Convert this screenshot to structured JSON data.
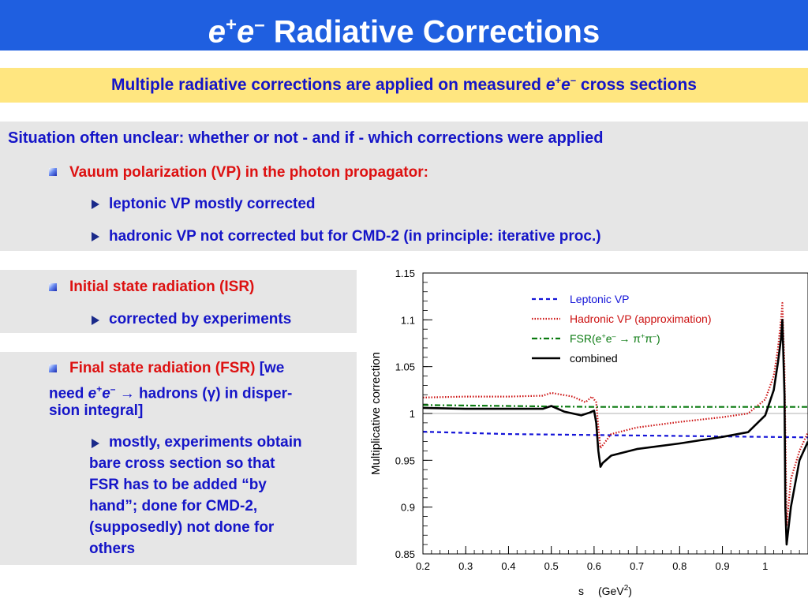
{
  "header": {
    "title_e1": "e",
    "title_sup1": "+",
    "title_e2": "e",
    "title_sup2": "–",
    "title_rest": " Radiative Corrections"
  },
  "banner": {
    "text_pre": "Multiple radiative corrections are applied on measured ",
    "e1": "e",
    "sup1": "+",
    "e2": "e",
    "sup2": "–",
    "text_post": " cross sections"
  },
  "section1": {
    "heading": "Situation often unclear: whether or not - and if - which corrections were applied",
    "bullet": "Vauum polarization (VP) in the photon propagator:",
    "sub1": "leptonic VP mostly corrected",
    "sub2": "hadronic VP not corrected but for CMD-2 (in principle: iterative proc.)"
  },
  "section2": {
    "bullet": "Initial state radiation (ISR)",
    "sub1": "corrected by experiments"
  },
  "section3": {
    "bullet_red": "Final state radiation (FSR)",
    "bullet_blue1": " [we",
    "line2_pre": "need ",
    "e1": "e",
    "sup1": "+",
    "e2": "e",
    "sup2": "–",
    "arrow": "→",
    "line2_post1": " hadrons (",
    "gamma": "γ",
    "line2_post2": ") in disper-",
    "line3": "sion integral]",
    "sub1_lines": [
      "mostly, experiments obtain",
      "bare cross section so that",
      "FSR has to be added “by",
      "hand”; done for CMD-2,",
      "(supposedly) not done for",
      "others"
    ]
  },
  "chart_data": {
    "type": "line",
    "xlabel_s": "s",
    "xlabel_unit": "(GeV",
    "xlabel_sup": "2",
    "xlabel_close": ")",
    "ylabel": "Multiplicative correction",
    "xlim": [
      0.2,
      1.1
    ],
    "ylim": [
      0.85,
      1.15
    ],
    "xticks": [
      "0.2",
      "0.3",
      "0.4",
      "0.5",
      "0.6",
      "0.7",
      "0.8",
      "0.9",
      "1"
    ],
    "yticks": [
      "0.85",
      "0.9",
      "0.95",
      "1",
      "1.05",
      "1.1",
      "1.15"
    ],
    "legend_position": "top-right",
    "series": [
      {
        "name": "Leptonic VP",
        "color": "#1515d8",
        "style": "dashed",
        "x": [
          0.2,
          0.4,
          0.6,
          0.8,
          1.0,
          1.1
        ],
        "y": [
          0.9805,
          0.978,
          0.977,
          0.976,
          0.975,
          0.9745
        ]
      },
      {
        "name": "Hadronic VP (approximation)",
        "color": "#cc1111",
        "style": "dotted",
        "x": [
          0.2,
          0.3,
          0.4,
          0.48,
          0.5,
          0.55,
          0.58,
          0.595,
          0.605,
          0.61,
          0.615,
          0.64,
          0.7,
          0.8,
          0.9,
          0.96,
          1.0,
          1.02,
          1.03,
          1.037,
          1.04,
          1.045,
          1.05,
          1.06,
          1.08,
          1.1
        ],
        "y": [
          1.017,
          1.018,
          1.018,
          1.019,
          1.022,
          1.018,
          1.012,
          1.018,
          1.012,
          0.985,
          0.963,
          0.978,
          0.985,
          0.991,
          0.996,
          1.0,
          1.015,
          1.04,
          1.07,
          1.1,
          1.118,
          1.05,
          0.88,
          0.93,
          0.96,
          0.98
        ]
      },
      {
        "name": "FSR",
        "legend_text": "FSR(e",
        "legend_sup1": "+",
        "legend_e": "e",
        "legend_sup2": "–",
        "legend_arrow": " → π",
        "legend_sup3": "+",
        "legend_pi": "π",
        "legend_sup4": "–",
        "legend_close": ")",
        "color": "#0a7a10",
        "style": "dashdot",
        "x": [
          0.2,
          0.4,
          0.6,
          0.8,
          1.0,
          1.1
        ],
        "y": [
          1.009,
          1.008,
          1.007,
          1.007,
          1.007,
          1.007
        ]
      },
      {
        "name": "combined",
        "color": "#000000",
        "style": "solid",
        "x": [
          0.2,
          0.3,
          0.4,
          0.48,
          0.5,
          0.53,
          0.57,
          0.59,
          0.6,
          0.605,
          0.61,
          0.615,
          0.62,
          0.64,
          0.7,
          0.8,
          0.9,
          0.96,
          1.0,
          1.02,
          1.03,
          1.037,
          1.04,
          1.045,
          1.047,
          1.05,
          1.06,
          1.08,
          1.1
        ],
        "y": [
          1.006,
          1.005,
          1.005,
          1.005,
          1.008,
          1.002,
          0.998,
          1.001,
          1.003,
          0.99,
          0.96,
          0.943,
          0.947,
          0.955,
          0.962,
          0.968,
          0.975,
          0.98,
          0.998,
          1.025,
          1.055,
          1.08,
          1.1,
          1.02,
          0.9,
          0.86,
          0.9,
          0.95,
          0.97
        ]
      }
    ],
    "reference_line_y": 1.0
  }
}
